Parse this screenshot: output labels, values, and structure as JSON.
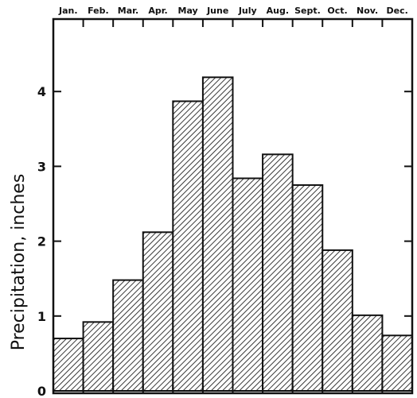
{
  "chart_data": {
    "type": "bar",
    "title": "",
    "xlabel": "",
    "ylabel": "Precipitation, inches",
    "categories": [
      "Jan.",
      "Feb.",
      "Mar.",
      "Apr.",
      "May",
      "June",
      "July",
      "Aug.",
      "Sept.",
      "Oct.",
      "Nov.",
      "Dec."
    ],
    "values": [
      0.7,
      0.92,
      1.48,
      2.12,
      3.87,
      4.19,
      2.84,
      3.16,
      2.75,
      1.88,
      1.01,
      0.74
    ],
    "ylim": [
      0,
      5
    ],
    "yticks": [
      "0",
      "1",
      "2",
      "3",
      "4"
    ],
    "grid": false,
    "bar_fill": "hatched",
    "colors": {
      "bar_stroke": "#111111",
      "hatch": "#222222",
      "background": "#ffffff"
    }
  }
}
